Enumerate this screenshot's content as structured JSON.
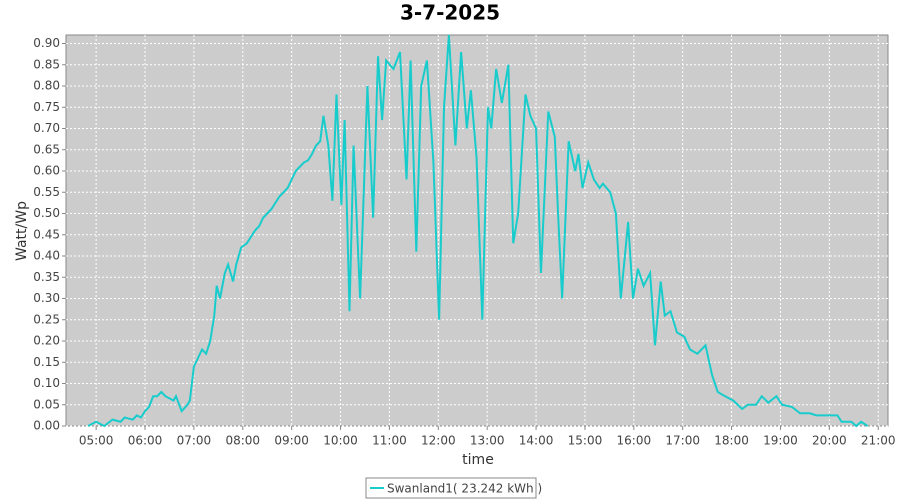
{
  "chart_data": {
    "type": "line",
    "title": "3-7-2025",
    "x_label": "time",
    "y_label": "Watt/Wp",
    "x": [
      "04:50",
      "05:00",
      "05:10",
      "05:20",
      "05:30",
      "05:35",
      "05:45",
      "05:50",
      "05:55",
      "06:00",
      "06:05",
      "06:10",
      "06:15",
      "06:20",
      "06:25",
      "06:30",
      "06:35",
      "06:38",
      "06:45",
      "06:52",
      "06:55",
      "07:00",
      "07:05",
      "07:10",
      "07:15",
      "07:20",
      "07:25",
      "07:28",
      "07:32",
      "07:38",
      "07:42",
      "07:48",
      "07:52",
      "07:58",
      "08:05",
      "08:15",
      "08:20",
      "08:25",
      "08:35",
      "08:45",
      "08:55",
      "09:00",
      "09:05",
      "09:10",
      "09:15",
      "09:20",
      "09:25",
      "09:30",
      "09:35",
      "09:39",
      "09:45",
      "09:50",
      "09:55",
      "10:01",
      "10:05",
      "10:11",
      "10:16",
      "10:24",
      "10:33",
      "10:40",
      "10:46",
      "10:51",
      "10:56",
      "11:05",
      "11:13",
      "11:21",
      "11:26",
      "11:33",
      "11:39",
      "11:46",
      "11:54",
      "12:01",
      "12:07",
      "12:13",
      "12:21",
      "12:28",
      "12:35",
      "12:40",
      "12:47",
      "12:54",
      "13:01",
      "13:05",
      "13:11",
      "13:18",
      "13:26",
      "13:32",
      "13:38",
      "13:47",
      "13:53",
      "14:00",
      "14:06",
      "14:15",
      "14:23",
      "14:27",
      "14:32",
      "14:40",
      "14:48",
      "14:52",
      "14:57",
      "15:04",
      "15:11",
      "15:18",
      "15:22",
      "15:31",
      "15:38",
      "15:44",
      "15:53",
      "15:59",
      "16:05",
      "16:12",
      "16:20",
      "16:26",
      "16:33",
      "16:38",
      "16:45",
      "16:53",
      "17:02",
      "17:09",
      "17:18",
      "17:28",
      "17:36",
      "17:43",
      "17:52",
      "18:02",
      "18:13",
      "18:20",
      "18:30",
      "18:37",
      "18:45",
      "18:55",
      "19:02",
      "19:14",
      "19:24",
      "19:36",
      "19:44",
      "20:10",
      "20:15",
      "20:27",
      "20:33",
      "20:39",
      "20:47"
    ],
    "series": [
      {
        "name": "Swanland1( 23.242 kWh )",
        "color": "#19cccc",
        "values": [
          0.0,
          0.01,
          0.0,
          0.015,
          0.01,
          0.02,
          0.015,
          0.025,
          0.02,
          0.035,
          0.045,
          0.07,
          0.07,
          0.08,
          0.07,
          0.065,
          0.06,
          0.07,
          0.035,
          0.05,
          0.06,
          0.14,
          0.16,
          0.18,
          0.17,
          0.2,
          0.26,
          0.33,
          0.3,
          0.36,
          0.38,
          0.34,
          0.38,
          0.42,
          0.43,
          0.46,
          0.47,
          0.49,
          0.51,
          0.54,
          0.56,
          0.58,
          0.6,
          0.61,
          0.62,
          0.625,
          0.64,
          0.66,
          0.67,
          0.73,
          0.66,
          0.53,
          0.78,
          0.52,
          0.72,
          0.27,
          0.66,
          0.3,
          0.8,
          0.49,
          0.87,
          0.72,
          0.86,
          0.84,
          0.88,
          0.58,
          0.86,
          0.41,
          0.8,
          0.86,
          0.62,
          0.25,
          0.75,
          0.92,
          0.66,
          0.88,
          0.7,
          0.79,
          0.63,
          0.25,
          0.75,
          0.7,
          0.84,
          0.76,
          0.85,
          0.43,
          0.5,
          0.78,
          0.73,
          0.7,
          0.36,
          0.74,
          0.68,
          0.5,
          0.3,
          0.67,
          0.6,
          0.64,
          0.56,
          0.62,
          0.58,
          0.56,
          0.57,
          0.55,
          0.5,
          0.3,
          0.48,
          0.3,
          0.37,
          0.33,
          0.36,
          0.19,
          0.34,
          0.26,
          0.27,
          0.22,
          0.21,
          0.18,
          0.17,
          0.19,
          0.12,
          0.08,
          0.07,
          0.06,
          0.04,
          0.05,
          0.05,
          0.07,
          0.055,
          0.07,
          0.05,
          0.045,
          0.03,
          0.03,
          0.025,
          0.025,
          0.01,
          0.01,
          0.0,
          0.01,
          0.0
        ]
      }
    ],
    "xlim": [
      "04:23",
      "21:12"
    ],
    "xticks": [
      "05:00",
      "06:00",
      "07:00",
      "08:00",
      "09:00",
      "10:00",
      "11:00",
      "12:00",
      "13:00",
      "14:00",
      "15:00",
      "16:00",
      "17:00",
      "18:00",
      "19:00",
      "20:00",
      "21:00"
    ],
    "ylim": [
      0,
      0.92
    ],
    "yticks": [
      {
        "value": 0,
        "label": "0.00"
      },
      0.05,
      {
        "value": 0.1,
        "label": "0.10"
      },
      0.15,
      {
        "value": 0.2,
        "label": "0.20"
      },
      0.25,
      {
        "value": 0.3,
        "label": "0.30"
      },
      0.35,
      {
        "value": 0.4,
        "label": "0.40"
      },
      0.45,
      {
        "value": 0.5,
        "label": "0.50"
      },
      0.55,
      {
        "value": 0.6,
        "label": "0.60"
      },
      0.65,
      {
        "value": 0.7,
        "label": "0.70"
      },
      0.75,
      {
        "value": 0.8,
        "label": "0.80"
      },
      0.85,
      {
        "value": 0.9,
        "label": "0.90"
      }
    ],
    "grid": true
  }
}
